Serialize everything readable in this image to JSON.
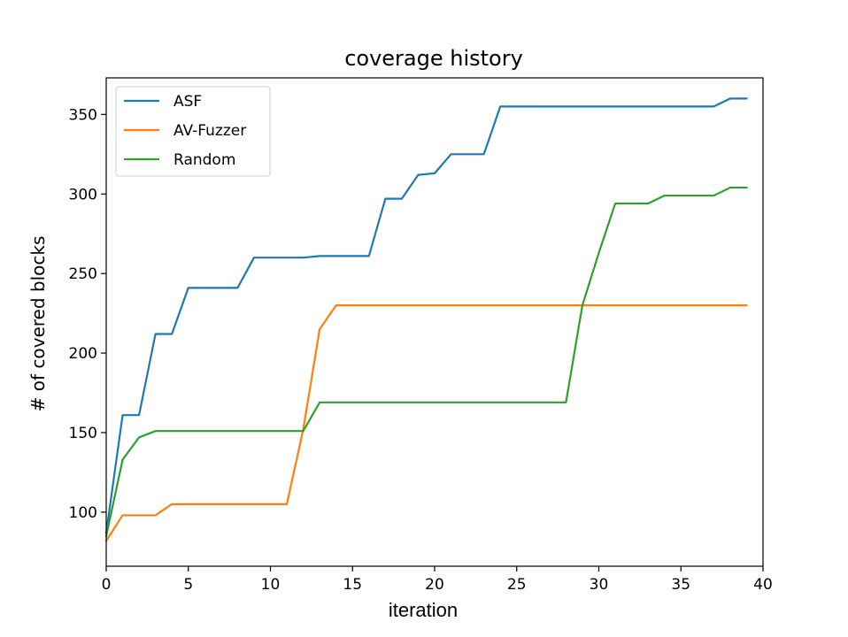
{
  "chart_data": {
    "type": "line",
    "title": "coverage history",
    "xlabel": "iteration",
    "ylabel": "# of covered blocks",
    "xlim": [
      0,
      40
    ],
    "ylim": [
      66,
      373
    ],
    "xticks": [
      0,
      5,
      10,
      15,
      20,
      25,
      30,
      35,
      40
    ],
    "yticks": [
      100,
      150,
      200,
      250,
      300,
      350
    ],
    "grid": false,
    "legend_position": "top-left",
    "x": [
      0,
      1,
      2,
      3,
      4,
      5,
      6,
      7,
      8,
      9,
      10,
      11,
      12,
      13,
      14,
      15,
      16,
      17,
      18,
      19,
      20,
      21,
      22,
      23,
      24,
      25,
      26,
      27,
      28,
      29,
      30,
      31,
      32,
      33,
      34,
      35,
      36,
      37,
      38,
      39
    ],
    "series": [
      {
        "name": "ASF",
        "color": "#1f77b4",
        "values": [
          87,
          161,
          161,
          212,
          212,
          241,
          241,
          241,
          241,
          260,
          260,
          260,
          260,
          261,
          261,
          261,
          261,
          297,
          297,
          312,
          313,
          325,
          325,
          325,
          355,
          355,
          355,
          355,
          355,
          355,
          355,
          355,
          355,
          355,
          355,
          355,
          355,
          355,
          360,
          360
        ]
      },
      {
        "name": "AV-Fuzzer",
        "color": "#ff7f0e",
        "values": [
          82,
          98,
          98,
          98,
          105,
          105,
          105,
          105,
          105,
          105,
          105,
          105,
          152,
          215,
          230,
          230,
          230,
          230,
          230,
          230,
          230,
          230,
          230,
          230,
          230,
          230,
          230,
          230,
          230,
          230,
          230,
          230,
          230,
          230,
          230,
          230,
          230,
          230,
          230,
          230
        ]
      },
      {
        "name": "Random",
        "color": "#2ca02c",
        "values": [
          85,
          133,
          147,
          151,
          151,
          151,
          151,
          151,
          151,
          151,
          151,
          151,
          151,
          169,
          169,
          169,
          169,
          169,
          169,
          169,
          169,
          169,
          169,
          169,
          169,
          169,
          169,
          169,
          169,
          230,
          263,
          294,
          294,
          294,
          299,
          299,
          299,
          299,
          304,
          304
        ]
      }
    ]
  }
}
